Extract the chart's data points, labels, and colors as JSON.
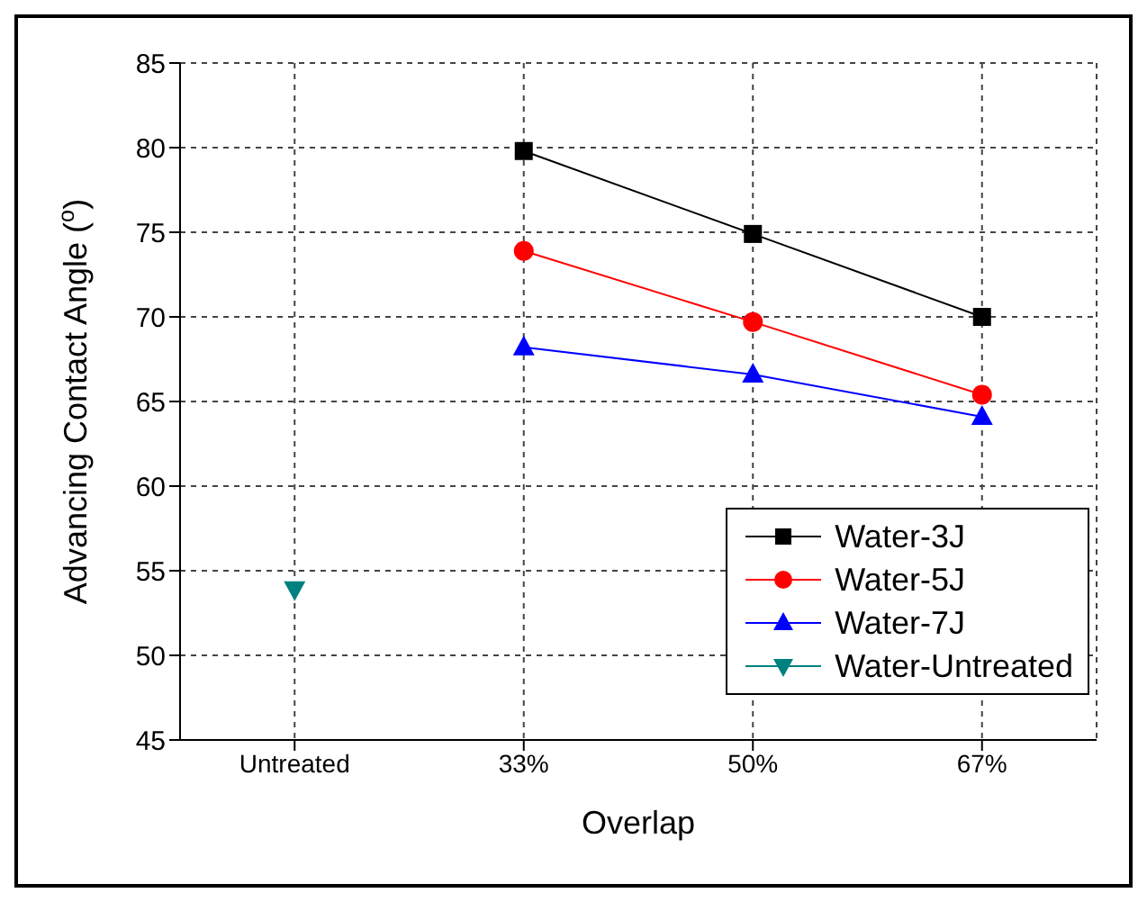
{
  "chart_data": {
    "type": "line",
    "xlabel": "Overlap",
    "ylabel": "Advancing Contact Angle ($^{o}$)",
    "categories": [
      "Untreated",
      "33%",
      "50%",
      "67%"
    ],
    "series": [
      {
        "name": "Water-3J",
        "color": "#000000",
        "marker": "square",
        "values": [
          null,
          79.8,
          74.9,
          70.0
        ]
      },
      {
        "name": "Water-5J",
        "color": "#ff0000",
        "marker": "circle",
        "values": [
          null,
          73.9,
          69.7,
          65.4
        ]
      },
      {
        "name": "Water-7J",
        "color": "#0000ff",
        "marker": "triangle",
        "values": [
          null,
          68.2,
          66.6,
          64.1
        ]
      },
      {
        "name": "Water-Untreated",
        "color": "#008080",
        "marker": "triangle-down",
        "values": [
          53.9,
          null,
          null,
          null
        ]
      }
    ],
    "ylim": [
      45,
      85
    ],
    "yticks": [
      45,
      50,
      55,
      60,
      65,
      70,
      75,
      80,
      85
    ],
    "grid": true,
    "legend": "bottom right"
  }
}
